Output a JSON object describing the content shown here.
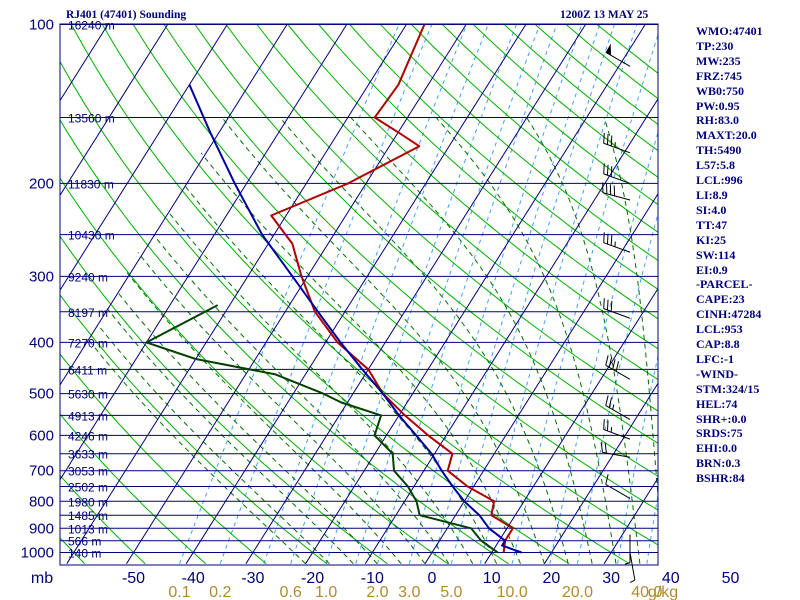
{
  "header": {
    "station": "RJ401 (47401) Sounding",
    "time": "1200Z 13 MAY 25"
  },
  "indices": [
    "WMO:47401",
    "TP:230",
    "MW:235",
    "FRZ:745",
    "WB0:750",
    "PW:0.95",
    "RH:83.0",
    "MAXT:20.0",
    "TH:5490",
    "L57:5.8",
    "LCL:996",
    "LI:8.9",
    "SI:4.0",
    "TT:47",
    "KI:25",
    "SW:114",
    "EI:0.9",
    "-PARCEL-",
    "CAPE:23",
    "CINH:47284",
    "LCL:953",
    "CAP:8.8",
    "LFC:-1",
    "-WIND-",
    "STM:324/15",
    "HEL:74",
    "SHR+:0.0",
    "SRDS:75",
    "EHI:0.0",
    "BRN:0.3",
    "BSHR:84"
  ],
  "chart_data": {
    "type": "line",
    "title": "RJ401 (47401) Sounding 1200Z 13 MAY 25",
    "xlabel": "",
    "ylabel": "mb",
    "xlim": [
      -50,
      50
    ],
    "ylim": [
      1050,
      100
    ],
    "log_y": true,
    "skew_x": true,
    "pressure_ticks": [
      {
        "p": 100,
        "label": "100"
      },
      {
        "p": 200,
        "label": "200"
      },
      {
        "p": 300,
        "label": "300"
      },
      {
        "p": 400,
        "label": "400"
      },
      {
        "p": 500,
        "label": "500"
      },
      {
        "p": 600,
        "label": "600"
      },
      {
        "p": 700,
        "label": "700"
      },
      {
        "p": 800,
        "label": "800"
      },
      {
        "p": 900,
        "label": "900"
      },
      {
        "p": 1000,
        "label": "1000"
      }
    ],
    "x_tick_labels": [
      "mb",
      "-50",
      "-40",
      "-30",
      "-20",
      "-10",
      "0",
      "10",
      "20",
      "30",
      "40",
      "50"
    ],
    "temperature_ticks": [
      -50,
      -40,
      -30,
      -20,
      -10,
      0,
      10,
      20,
      30,
      40
    ],
    "mixing_ratio_labels": [
      "0.1",
      "0.2",
      "0.6",
      "1.0",
      "2.0",
      "3.0",
      "5.0",
      "10.0",
      "20.0",
      "40.0",
      "g/kg"
    ],
    "height_labels": [
      {
        "p": 100,
        "label": "16240 m"
      },
      {
        "p": 150,
        "label": "13560 m"
      },
      {
        "p": 200,
        "label": "11830 m"
      },
      {
        "p": 250,
        "label": "10430 m"
      },
      {
        "p": 300,
        "label": "9240 m"
      },
      {
        "p": 350,
        "label": "8197 m"
      },
      {
        "p": 400,
        "label": "7270 m"
      },
      {
        "p": 450,
        "label": "6411 m"
      },
      {
        "p": 500,
        "label": "5630 m"
      },
      {
        "p": 550,
        "label": "4913 m"
      },
      {
        "p": 600,
        "label": "4246 m"
      },
      {
        "p": 650,
        "label": "3633 m"
      },
      {
        "p": 700,
        "label": "3053 m"
      },
      {
        "p": 750,
        "label": "2502 m"
      },
      {
        "p": 800,
        "label": "1980 m"
      },
      {
        "p": 850,
        "label": "1485 m"
      },
      {
        "p": 900,
        "label": "1013 m"
      },
      {
        "p": 950,
        "label": "566 m"
      },
      {
        "p": 1000,
        "label": "140 m"
      }
    ],
    "series": [
      {
        "color": "#b00000",
        "points": [
          [
            100,
            -57
          ],
          [
            130,
            -55
          ],
          [
            150,
            -55.5
          ],
          [
            160,
            -50
          ],
          [
            170,
            -45
          ],
          [
            200,
            -53
          ],
          [
            230,
            -62.5
          ],
          [
            260,
            -56
          ],
          [
            300,
            -51
          ],
          [
            350,
            -45
          ],
          [
            400,
            -38
          ],
          [
            450,
            -30
          ],
          [
            500,
            -25
          ],
          [
            550,
            -19
          ],
          [
            600,
            -13
          ],
          [
            650,
            -7
          ],
          [
            700,
            -6
          ],
          [
            750,
            -1
          ],
          [
            800,
            5
          ],
          [
            850,
            6
          ],
          [
            900,
            11
          ],
          [
            950,
            11
          ],
          [
            1000,
            12
          ]
        ]
      },
      {
        "color": "#004000",
        "points": [
          [
            340,
            -62
          ],
          [
            400,
            -70
          ],
          [
            430,
            -60
          ],
          [
            460,
            -45
          ],
          [
            500,
            -35
          ],
          [
            520,
            -31
          ],
          [
            550,
            -23
          ],
          [
            600,
            -22
          ],
          [
            650,
            -17
          ],
          [
            700,
            -15
          ],
          [
            750,
            -11
          ],
          [
            800,
            -8
          ],
          [
            850,
            -6
          ],
          [
            900,
            4
          ],
          [
            950,
            7
          ],
          [
            1000,
            11
          ]
        ]
      },
      {
        "color": "#0000a0",
        "points": [
          [
            1000,
            15
          ],
          [
            970,
            11
          ],
          [
            950,
            11
          ],
          [
            900,
            7
          ],
          [
            850,
            4
          ],
          [
            800,
            0
          ],
          [
            750,
            -3.5
          ],
          [
            700,
            -7
          ],
          [
            650,
            -10.5
          ],
          [
            600,
            -15
          ],
          [
            550,
            -20
          ],
          [
            500,
            -25
          ],
          [
            450,
            -31
          ],
          [
            400,
            -37.5
          ],
          [
            350,
            -44.5
          ],
          [
            300,
            -52.5
          ],
          [
            250,
            -62
          ],
          [
            200,
            -72
          ],
          [
            160,
            -81.5
          ],
          [
            130,
            -90
          ]
        ]
      }
    ],
    "wind_barbs": [
      {
        "p": 120,
        "dir": 300,
        "speed": 50
      },
      {
        "p": 175,
        "dir": 290,
        "speed": 35
      },
      {
        "p": 200,
        "dir": 290,
        "speed": 30
      },
      {
        "p": 215,
        "dir": 285,
        "speed": 40
      },
      {
        "p": 270,
        "dir": 290,
        "speed": 35
      },
      {
        "p": 360,
        "dir": 290,
        "speed": 30
      },
      {
        "p": 470,
        "dir": 300,
        "speed": 40
      },
      {
        "p": 560,
        "dir": 300,
        "speed": 25
      },
      {
        "p": 610,
        "dir": 290,
        "speed": 25
      },
      {
        "p": 660,
        "dir": 280,
        "speed": 20
      },
      {
        "p": 790,
        "dir": 300,
        "speed": 10
      },
      {
        "p": 925,
        "dir": 180,
        "speed": 5
      },
      {
        "p": 1000,
        "dir": 170,
        "speed": 5
      }
    ],
    "colors": {
      "isobar": "#00007a",
      "dry_adiabat": "#00b000",
      "moist_adiabat": "#007000",
      "mixing_ratio": "#40a0ff",
      "isotherm": "#00007a",
      "text": "#00007a",
      "tan_label": "#b08a30"
    }
  }
}
